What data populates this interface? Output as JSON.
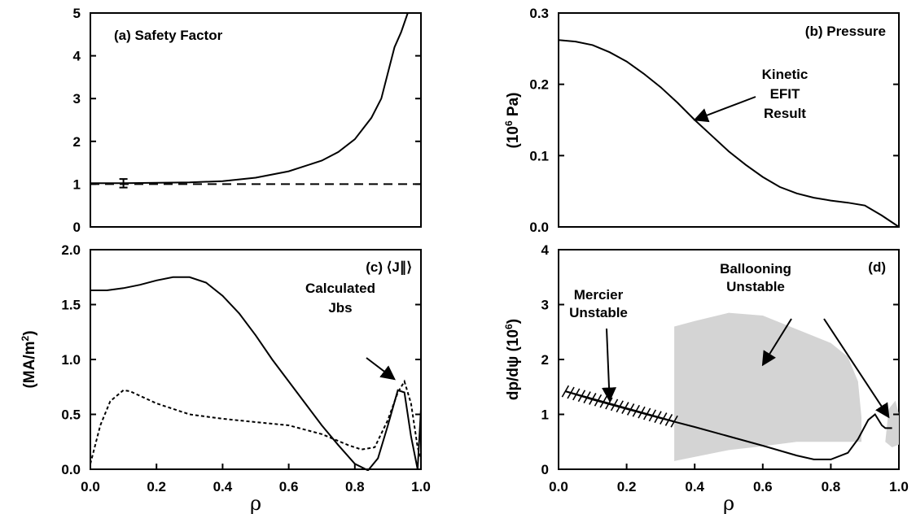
{
  "chart_data": [
    {
      "id": "a",
      "type": "line",
      "title": "(a) Safety Factor",
      "xlabel": "",
      "ylabel": "",
      "xlim": [
        0,
        1.0
      ],
      "ylim": [
        0,
        5
      ],
      "xticks": [],
      "yticks": [
        {
          "v": 0,
          "t": "0"
        },
        {
          "v": 1,
          "t": "1"
        },
        {
          "v": 2,
          "t": "2"
        },
        {
          "v": 3,
          "t": "3"
        },
        {
          "v": 4,
          "t": "4"
        },
        {
          "v": 5,
          "t": "5"
        }
      ],
      "series": [
        {
          "style": "solid",
          "points": [
            [
              0.0,
              1.02
            ],
            [
              0.1,
              1.02
            ],
            [
              0.2,
              1.03
            ],
            [
              0.3,
              1.04
            ],
            [
              0.4,
              1.07
            ],
            [
              0.5,
              1.15
            ],
            [
              0.6,
              1.3
            ],
            [
              0.7,
              1.55
            ],
            [
              0.75,
              1.75
            ],
            [
              0.8,
              2.05
            ],
            [
              0.85,
              2.55
            ],
            [
              0.88,
              3.0
            ],
            [
              0.9,
              3.6
            ],
            [
              0.92,
              4.2
            ],
            [
              0.94,
              4.55
            ],
            [
              0.96,
              5.0
            ]
          ]
        },
        {
          "style": "dashed",
          "points": [
            [
              0.0,
              1.0
            ],
            [
              1.0,
              1.0
            ]
          ]
        }
      ],
      "errorbar": {
        "x": 0.1,
        "y": 1.02,
        "low": 0.92,
        "high": 1.12
      }
    },
    {
      "id": "b",
      "type": "line",
      "title": "(b) Pressure",
      "xlabel": "",
      "ylabel": "(10^6 Pa)",
      "xlim": [
        0,
        1.0
      ],
      "ylim": [
        0,
        0.3
      ],
      "xticks": [],
      "yticks": [
        {
          "v": 0.0,
          "t": "0.0"
        },
        {
          "v": 0.1,
          "t": "0.1"
        },
        {
          "v": 0.2,
          "t": "0.2"
        },
        {
          "v": 0.3,
          "t": "0.3"
        }
      ],
      "series": [
        {
          "style": "solid",
          "points": [
            [
              0.0,
              0.262
            ],
            [
              0.05,
              0.26
            ],
            [
              0.1,
              0.255
            ],
            [
              0.15,
              0.245
            ],
            [
              0.2,
              0.232
            ],
            [
              0.25,
              0.215
            ],
            [
              0.3,
              0.196
            ],
            [
              0.35,
              0.174
            ],
            [
              0.4,
              0.15
            ],
            [
              0.45,
              0.128
            ],
            [
              0.5,
              0.106
            ],
            [
              0.55,
              0.087
            ],
            [
              0.6,
              0.07
            ],
            [
              0.65,
              0.056
            ],
            [
              0.7,
              0.047
            ],
            [
              0.75,
              0.041
            ],
            [
              0.8,
              0.037
            ],
            [
              0.85,
              0.034
            ],
            [
              0.9,
              0.03
            ],
            [
              0.95,
              0.016
            ],
            [
              1.0,
              0.0
            ]
          ]
        }
      ],
      "annotation": {
        "lines": [
          "Kinetic",
          "EFIT",
          "Result"
        ],
        "arrow_to": [
          0.4,
          0.15
        ]
      }
    },
    {
      "id": "c",
      "type": "line",
      "title": "(c) ⟨J∥⟩",
      "xlabel": "ρ",
      "ylabel": "(MA/m²)",
      "xlim": [
        0,
        1.0
      ],
      "ylim": [
        0,
        2.0
      ],
      "xticks": [
        {
          "v": 0.0,
          "t": "0.0"
        },
        {
          "v": 0.2,
          "t": "0.2"
        },
        {
          "v": 0.4,
          "t": "0.4"
        },
        {
          "v": 0.6,
          "t": "0.6"
        },
        {
          "v": 0.8,
          "t": "0.8"
        },
        {
          "v": 1.0,
          "t": "1.0"
        }
      ],
      "yticks": [
        {
          "v": 0.0,
          "t": "0.0"
        },
        {
          "v": 0.5,
          "t": "0.5"
        },
        {
          "v": 1.0,
          "t": "1.0"
        },
        {
          "v": 1.5,
          "t": "1.5"
        },
        {
          "v": 2.0,
          "t": "2.0"
        }
      ],
      "series": [
        {
          "style": "solid",
          "points": [
            [
              0.0,
              1.63
            ],
            [
              0.05,
              1.63
            ],
            [
              0.1,
              1.65
            ],
            [
              0.15,
              1.68
            ],
            [
              0.2,
              1.72
            ],
            [
              0.25,
              1.75
            ],
            [
              0.3,
              1.75
            ],
            [
              0.35,
              1.7
            ],
            [
              0.4,
              1.58
            ],
            [
              0.45,
              1.42
            ],
            [
              0.5,
              1.22
            ],
            [
              0.55,
              1.0
            ],
            [
              0.6,
              0.8
            ],
            [
              0.65,
              0.6
            ],
            [
              0.7,
              0.4
            ],
            [
              0.75,
              0.22
            ],
            [
              0.8,
              0.05
            ],
            [
              0.84,
              -0.01
            ],
            [
              0.87,
              0.1
            ],
            [
              0.9,
              0.4
            ],
            [
              0.93,
              0.72
            ],
            [
              0.95,
              0.7
            ],
            [
              0.97,
              0.3
            ],
            [
              0.99,
              0.0
            ],
            [
              1.0,
              0.55
            ]
          ]
        },
        {
          "style": "dotted",
          "points": [
            [
              0.0,
              0.05
            ],
            [
              0.03,
              0.4
            ],
            [
              0.06,
              0.62
            ],
            [
              0.1,
              0.72
            ],
            [
              0.12,
              0.71
            ],
            [
              0.2,
              0.6
            ],
            [
              0.3,
              0.5
            ],
            [
              0.4,
              0.46
            ],
            [
              0.5,
              0.43
            ],
            [
              0.6,
              0.4
            ],
            [
              0.7,
              0.32
            ],
            [
              0.78,
              0.22
            ],
            [
              0.82,
              0.18
            ],
            [
              0.86,
              0.2
            ],
            [
              0.9,
              0.45
            ],
            [
              0.93,
              0.7
            ],
            [
              0.95,
              0.8
            ],
            [
              0.97,
              0.6
            ],
            [
              0.99,
              0.2
            ],
            [
              1.0,
              0.1
            ]
          ]
        },
        {
          "style": "dashed",
          "points": [
            [
              0.0,
              0.0
            ],
            [
              1.0,
              0.0
            ]
          ]
        }
      ],
      "annotation": {
        "lines": [
          "Calculated",
          "Jbs"
        ],
        "arrow_to": [
          0.92,
          0.82
        ]
      }
    },
    {
      "id": "d",
      "type": "line",
      "title": "(d)",
      "xlabel": "ρ",
      "ylabel": "dp/dψ (10^6)",
      "xlim": [
        0,
        1.0
      ],
      "ylim": [
        0,
        4
      ],
      "xticks": [
        {
          "v": 0.0,
          "t": "0.0"
        },
        {
          "v": 0.2,
          "t": "0.2"
        },
        {
          "v": 0.4,
          "t": "0.4"
        },
        {
          "v": 0.6,
          "t": "0.6"
        },
        {
          "v": 0.8,
          "t": "0.8"
        },
        {
          "v": 1.0,
          "t": "1.0"
        }
      ],
      "yticks": [
        {
          "v": 0,
          "t": "0"
        },
        {
          "v": 1,
          "t": "1"
        },
        {
          "v": 2,
          "t": "2"
        },
        {
          "v": 3,
          "t": "3"
        },
        {
          "v": 4,
          "t": "4"
        }
      ],
      "series": [
        {
          "style": "solid",
          "points": [
            [
              0.02,
              1.42
            ],
            [
              0.1,
              1.27
            ],
            [
              0.2,
              1.1
            ],
            [
              0.3,
              0.93
            ],
            [
              0.4,
              0.77
            ],
            [
              0.5,
              0.6
            ],
            [
              0.6,
              0.43
            ],
            [
              0.7,
              0.25
            ],
            [
              0.75,
              0.18
            ],
            [
              0.8,
              0.18
            ],
            [
              0.85,
              0.3
            ],
            [
              0.88,
              0.55
            ],
            [
              0.91,
              0.9
            ],
            [
              0.93,
              1.0
            ],
            [
              0.95,
              0.8
            ],
            [
              0.96,
              0.75
            ],
            [
              0.98,
              0.75
            ]
          ]
        },
        {
          "style": "hatched",
          "points": [
            [
              0.02,
              1.42
            ],
            [
              0.34,
              0.87
            ]
          ]
        }
      ],
      "regions": [
        {
          "points": [
            [
              0.34,
              0.15
            ],
            [
              0.34,
              2.6
            ],
            [
              0.4,
              2.7
            ],
            [
              0.5,
              2.85
            ],
            [
              0.6,
              2.8
            ],
            [
              0.7,
              2.55
            ],
            [
              0.8,
              2.3
            ],
            [
              0.85,
              2.05
            ],
            [
              0.88,
              1.6
            ],
            [
              0.89,
              0.95
            ],
            [
              0.89,
              0.5
            ],
            [
              0.8,
              0.5
            ],
            [
              0.7,
              0.5
            ],
            [
              0.6,
              0.42
            ],
            [
              0.5,
              0.35
            ],
            [
              0.34,
              0.15
            ]
          ]
        },
        {
          "points": [
            [
              0.96,
              0.5
            ],
            [
              0.97,
              1.1
            ],
            [
              0.99,
              1.25
            ],
            [
              1.0,
              1.0
            ],
            [
              1.0,
              0.45
            ],
            [
              0.98,
              0.4
            ],
            [
              0.96,
              0.5
            ]
          ]
        }
      ],
      "annotations": [
        {
          "lines": [
            "Mercier",
            "Unstable"
          ],
          "arrow_to": [
            0.15,
            1.25
          ]
        },
        {
          "lines": [
            "Ballooning",
            "Unstable"
          ],
          "arrow_to": [
            0.6,
            1.9
          ]
        }
      ],
      "extra_arrow_to": [
        0.97,
        0.95
      ]
    }
  ]
}
